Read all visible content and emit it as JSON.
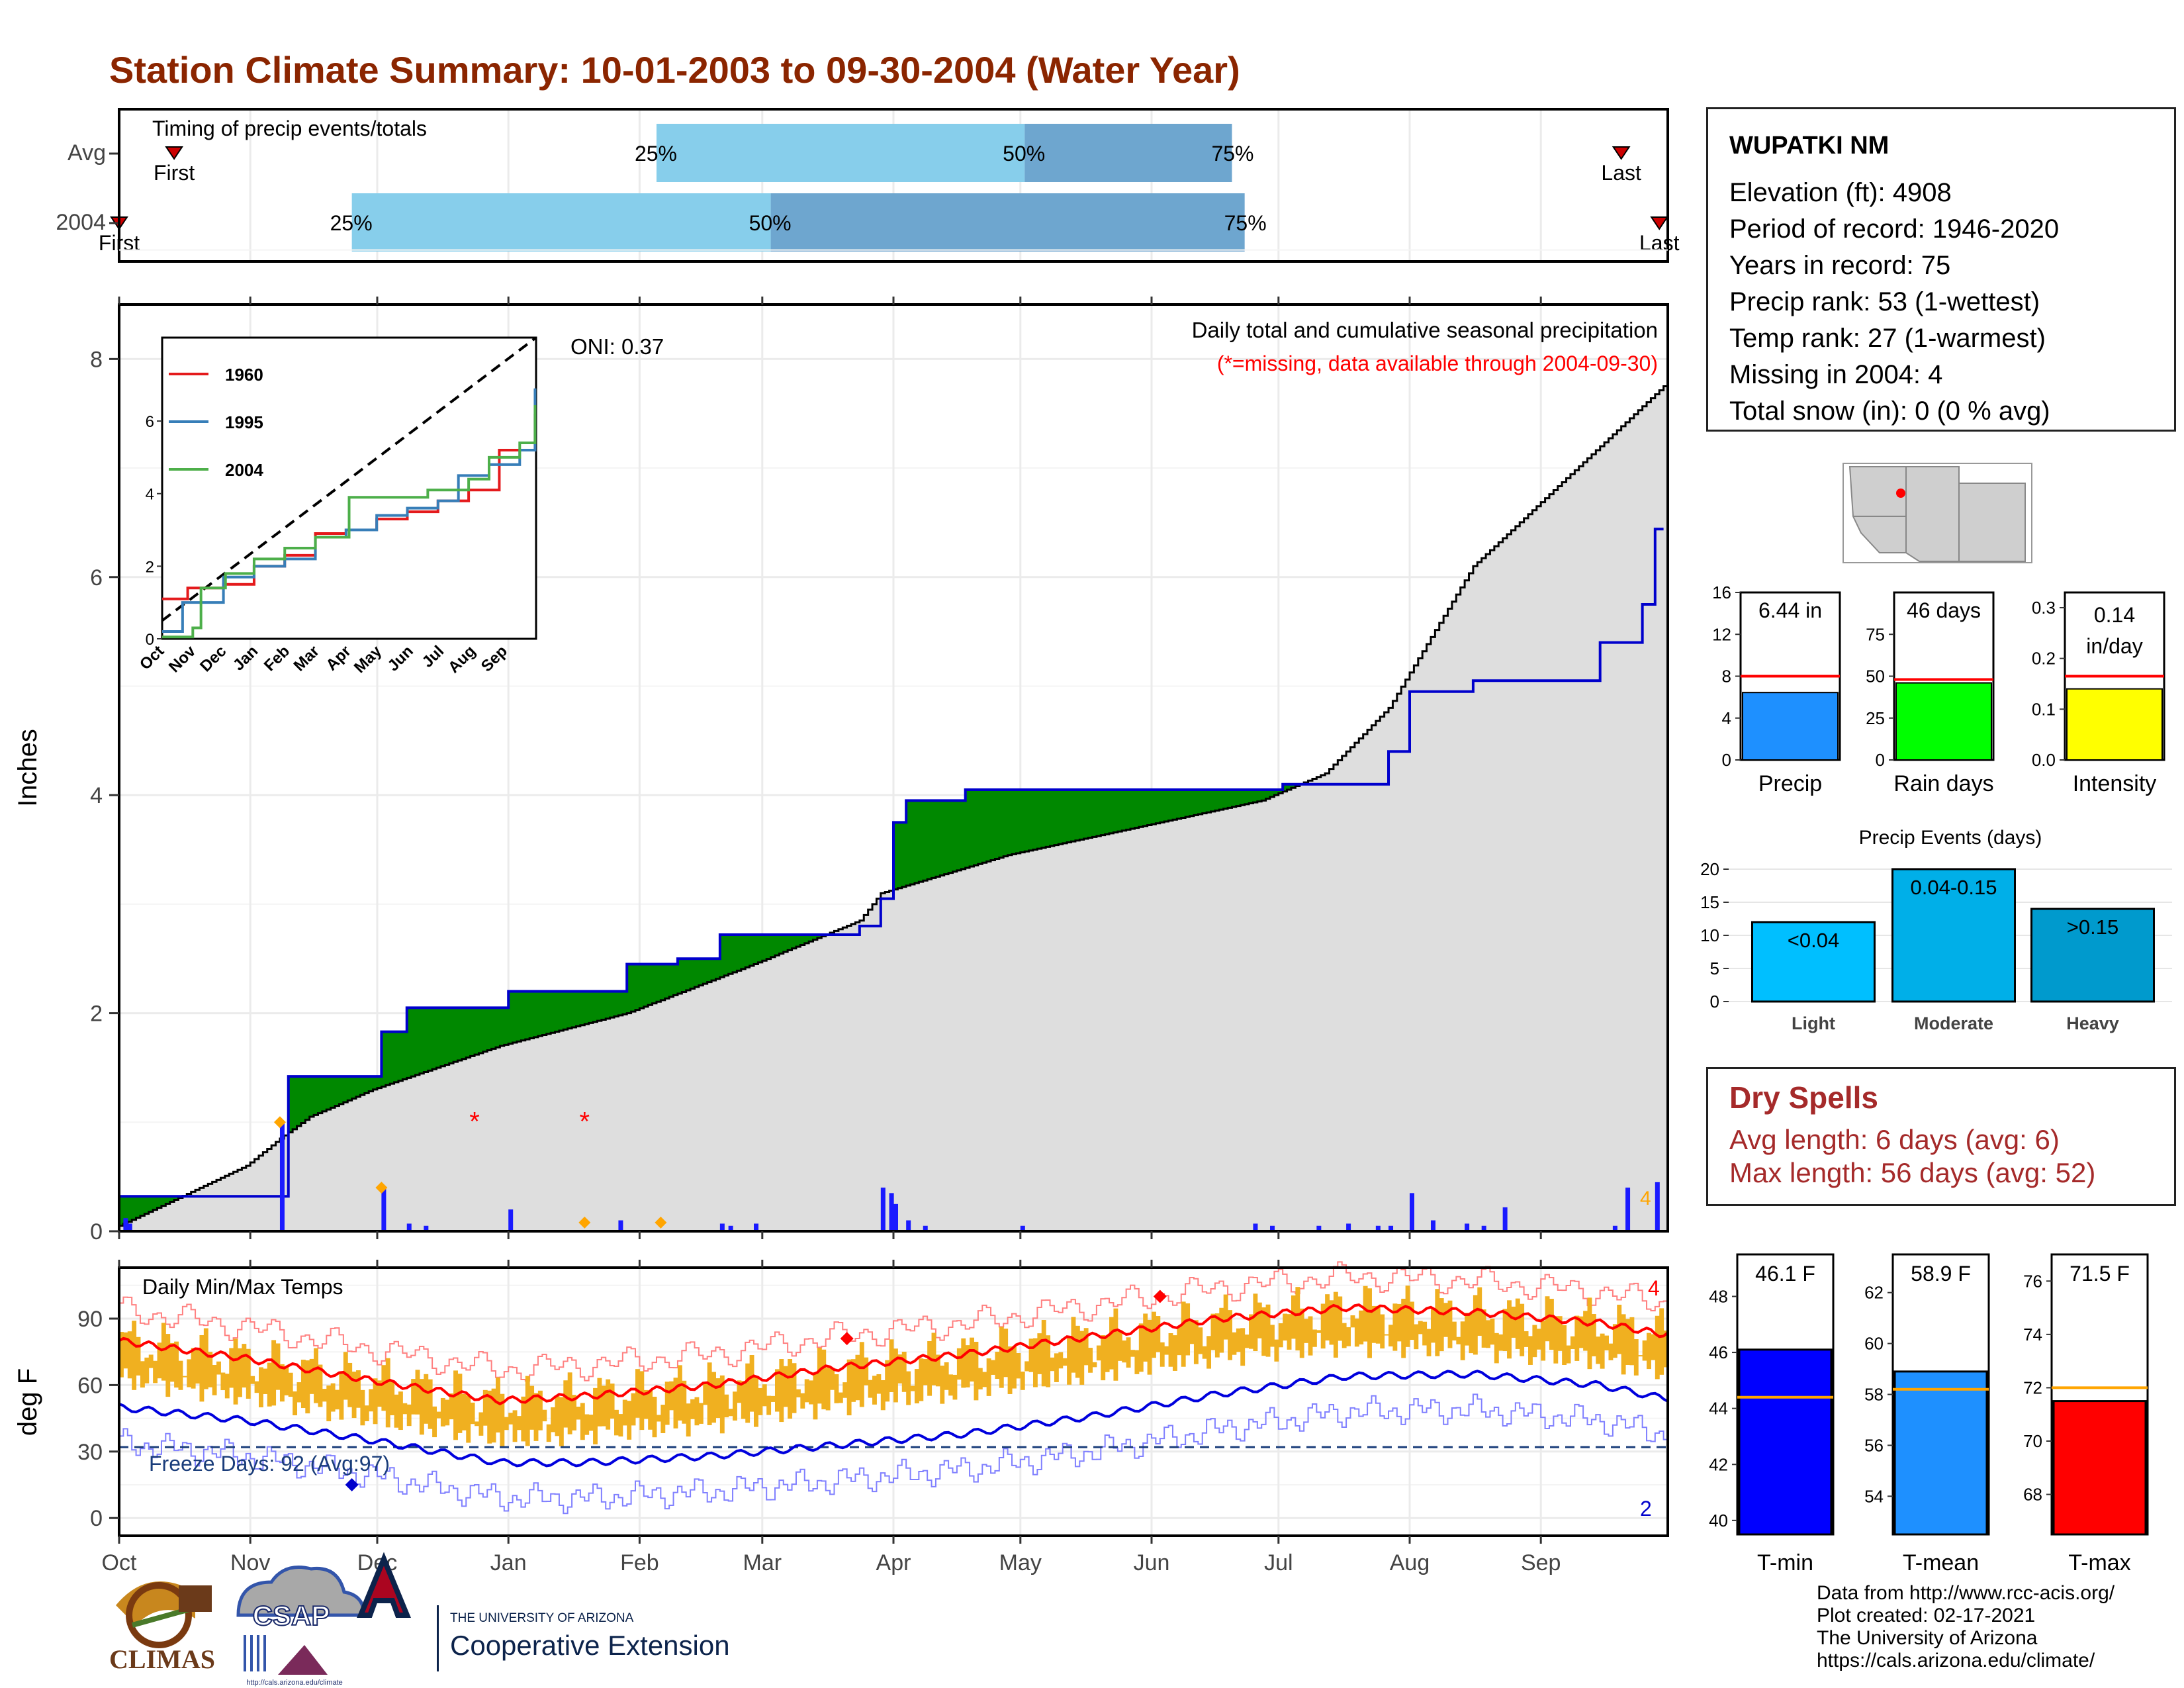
{
  "title": "Station Climate Summary: 10-01-2003 to 09-30-2004 (Water Year)",
  "colors": {
    "title": "#8b2500",
    "pctl_light": "#87ceeb",
    "pctl_dark": "#6ea6cf",
    "wet": "#008800",
    "dry": "#8b5a00",
    "avg_fill": "#dedede",
    "obs_line": "#0000cc",
    "bars": "#1a1aff",
    "temp_bar": "#f0b020",
    "tmax_avg": "#ff0000",
    "tmin_avg": "#0000dd",
    "freeze_line": "#1a3d7a"
  },
  "timing": {
    "label": "Timing of precip events/totals",
    "rows": [
      {
        "name": "Avg",
        "first_label": "First",
        "last_label": "Last",
        "p25": "25%",
        "p50": "50%",
        "p75": "75%"
      },
      {
        "name": "2004",
        "first_label": "First",
        "last_label": "Last",
        "p25": "25%",
        "p50": "50%",
        "p75": "75%"
      }
    ]
  },
  "precip_panel": {
    "ylabel": "Inches",
    "ticks": [
      "0",
      "2",
      "4",
      "6",
      "8"
    ],
    "header1": "Daily total and cumulative seasonal precipitation",
    "header2": "(*=missing, data available through 2004-09-30)",
    "oni": "ONI: 0.37",
    "missing_count": "4",
    "inset": {
      "legend": [
        "1960",
        "1995",
        "2004"
      ],
      "legend_colors": [
        "#e41a1c",
        "#377eb8",
        "#4daf4a"
      ],
      "yticks": [
        "0",
        "2",
        "4",
        "6"
      ],
      "months": [
        "Oct",
        "Nov",
        "Dec",
        "Jan",
        "Feb",
        "Mar",
        "Apr",
        "May",
        "Jun",
        "Jul",
        "Aug",
        "Sep"
      ]
    }
  },
  "temp_panel": {
    "ylabel": "deg F",
    "label": "Daily Min/Max Temps",
    "ticks": [
      "0",
      "30",
      "60",
      "90"
    ],
    "freeze_label": "Freeze Days: 92 (Avg:97)",
    "count_top": "4",
    "count_bottom": "2"
  },
  "months": [
    "Oct",
    "Nov",
    "Dec",
    "Jan",
    "Feb",
    "Mar",
    "Apr",
    "May",
    "Jun",
    "Jul",
    "Aug",
    "Sep"
  ],
  "station": {
    "name": "WUPATKI NM",
    "lines": [
      "Elevation (ft): 4908",
      "Period of record: 1946-2020",
      "Years in record: 75",
      "Precip rank: 53 (1-wettest)",
      "Temp rank: 27 (1-warmest)",
      "Missing in 2004: 4",
      "Total snow (in): 0 (0 % avg)"
    ]
  },
  "summary_bars": [
    {
      "label": "Precip",
      "value_label": "6.44 in",
      "value": 6.44,
      "avg": 8.0,
      "ymax": 16,
      "ticks": [
        "0",
        "4",
        "8",
        "12",
        "16"
      ],
      "color": "#1e90ff"
    },
    {
      "label": "Rain days",
      "value_label": "46 days",
      "value": 46,
      "avg": 48,
      "ymax": 100,
      "ticks": [
        "0",
        "25",
        "50",
        "75"
      ],
      "color": "#00ff00"
    },
    {
      "label": "Intensity",
      "value_label": "0.14 in/day",
      "value_label_1": "0.14",
      "value_label_2": "in/day",
      "value": 0.14,
      "avg": 0.165,
      "ymax": 0.33,
      "ticks": [
        "0.0",
        "0.1",
        "0.2",
        "0.3"
      ],
      "color": "#ffff00"
    }
  ],
  "events": {
    "title": "Precip Events (days)",
    "categories": [
      "Light",
      "Moderate",
      "Heavy"
    ],
    "bar_labels": [
      "<0.04",
      "0.04-0.15",
      ">0.15"
    ],
    "values": [
      12,
      20,
      14
    ],
    "ticks": [
      "0",
      "5",
      "10",
      "15",
      "20"
    ],
    "colors": [
      "#00bfff",
      "#00afe8",
      "#009acd"
    ]
  },
  "dry_spells": {
    "title": "Dry Spells",
    "lines": [
      "Avg length: 6 days (avg: 6)",
      "Max length: 56 days (avg: 52)"
    ]
  },
  "temp_bars": [
    {
      "label": "T-min",
      "value_label": "46.1 F",
      "value": 46.1,
      "avg": 44.4,
      "ymin": 39.5,
      "ymax": 49.5,
      "ticks": [
        "40",
        "42",
        "44",
        "46",
        "48"
      ],
      "color": "#0000ff"
    },
    {
      "label": "T-mean",
      "value_label": "58.9 F",
      "value": 58.9,
      "avg": 58.2,
      "ymin": 52.5,
      "ymax": 63.5,
      "ticks": [
        "54",
        "56",
        "58",
        "60",
        "62"
      ],
      "color": "#1e90ff"
    },
    {
      "label": "T-max",
      "value_label": "71.5 F",
      "value": 71.5,
      "avg": 72.0,
      "ymin": 66.5,
      "ymax": 77.0,
      "ticks": [
        "68",
        "70",
        "72",
        "74",
        "76"
      ],
      "color": "#ff0000"
    }
  ],
  "credits": [
    "Data from http://www.rcc-acis.org/",
    "Plot created: 02-17-2021",
    "The University of Arizona",
    "https://cals.arizona.edu/climate/"
  ],
  "logos": {
    "climas": "CLIMAS",
    "csap": "CSAP",
    "csap_url": "http://cals.arizona.edu/climate",
    "ua_line1": "THE UNIVERSITY OF ARIZONA",
    "ua_line2": "Cooperative Extension"
  },
  "chart_data": [
    {
      "type": "area",
      "title": "Daily total and cumulative seasonal precipitation",
      "ylabel": "Inches",
      "ylim": [
        0,
        8.5
      ],
      "observed_cumulative_2004": [
        [
          0,
          0.32
        ],
        [
          38,
          0.32
        ],
        [
          40,
          1.42
        ],
        [
          60,
          1.42
        ],
        [
          62,
          1.83
        ],
        [
          68,
          2.05
        ],
        [
          90,
          2.05
        ],
        [
          92,
          2.2
        ],
        [
          118,
          2.2
        ],
        [
          120,
          2.45
        ],
        [
          132,
          2.5
        ],
        [
          142,
          2.72
        ],
        [
          175,
          2.8
        ],
        [
          180,
          3.05
        ],
        [
          183,
          3.75
        ],
        [
          186,
          3.95
        ],
        [
          200,
          4.05
        ],
        [
          260,
          4.05
        ],
        [
          275,
          4.1
        ],
        [
          300,
          4.4
        ],
        [
          305,
          4.95
        ],
        [
          320,
          5.05
        ],
        [
          350,
          5.4
        ],
        [
          360,
          5.75
        ],
        [
          363,
          6.44
        ]
      ],
      "average_cumulative": [
        [
          0,
          0.05
        ],
        [
          30,
          0.6
        ],
        [
          38,
          0.85
        ],
        [
          45,
          1.05
        ],
        [
          60,
          1.3
        ],
        [
          90,
          1.7
        ],
        [
          120,
          2.0
        ],
        [
          150,
          2.45
        ],
        [
          175,
          2.85
        ],
        [
          180,
          3.1
        ],
        [
          210,
          3.45
        ],
        [
          240,
          3.7
        ],
        [
          270,
          3.95
        ],
        [
          285,
          4.2
        ],
        [
          300,
          4.8
        ],
        [
          320,
          6.1
        ],
        [
          350,
          7.2
        ],
        [
          365,
          7.75
        ]
      ],
      "daily_bars": [
        [
          1,
          0.12
        ],
        [
          2,
          0.07
        ],
        [
          38,
          1.0
        ],
        [
          62,
          0.4
        ],
        [
          68,
          0.07
        ],
        [
          72,
          0.05
        ],
        [
          92,
          0.2
        ],
        [
          118,
          0.1
        ],
        [
          142,
          0.07
        ],
        [
          144,
          0.05
        ],
        [
          150,
          0.07
        ],
        [
          180,
          0.4
        ],
        [
          182,
          0.35
        ],
        [
          183,
          0.25
        ],
        [
          186,
          0.1
        ],
        [
          190,
          0.05
        ],
        [
          213,
          0.05
        ],
        [
          268,
          0.07
        ],
        [
          272,
          0.05
        ],
        [
          283,
          0.05
        ],
        [
          290,
          0.07
        ],
        [
          297,
          0.05
        ],
        [
          300,
          0.05
        ],
        [
          305,
          0.35
        ],
        [
          310,
          0.1
        ],
        [
          318,
          0.07
        ],
        [
          322,
          0.05
        ],
        [
          327,
          0.22
        ],
        [
          353,
          0.05
        ],
        [
          356,
          0.4
        ],
        [
          363,
          0.45
        ]
      ],
      "missing_days": [
        84,
        110
      ]
    },
    {
      "type": "line",
      "title": "Daily Min/Max Temps",
      "ylabel": "deg F",
      "ylim": [
        -8,
        113
      ],
      "avg_tmax": [
        [
          0,
          80
        ],
        [
          30,
          72
        ],
        [
          60,
          62
        ],
        [
          90,
          53
        ],
        [
          110,
          55
        ],
        [
          140,
          60
        ],
        [
          170,
          68
        ],
        [
          200,
          74
        ],
        [
          230,
          82
        ],
        [
          260,
          90
        ],
        [
          290,
          95
        ],
        [
          320,
          93
        ],
        [
          350,
          88
        ],
        [
          365,
          83
        ]
      ],
      "avg_tmin": [
        [
          0,
          50
        ],
        [
          30,
          44
        ],
        [
          60,
          35
        ],
        [
          90,
          25
        ],
        [
          110,
          25
        ],
        [
          140,
          28
        ],
        [
          170,
          33
        ],
        [
          200,
          38
        ],
        [
          230,
          46
        ],
        [
          260,
          56
        ],
        [
          290,
          64
        ],
        [
          320,
          65
        ],
        [
          350,
          60
        ],
        [
          365,
          54
        ]
      ],
      "freeze_threshold": 32
    }
  ]
}
